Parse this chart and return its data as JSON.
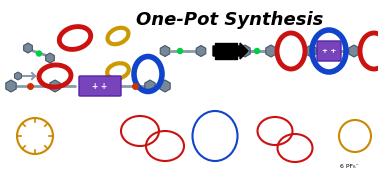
{
  "title": "One-Pot Synthesis",
  "title_style": "bold italic",
  "title_fontsize": 13,
  "bg_color": "#ffffff",
  "ring_colors": {
    "red": "#cc1111",
    "gold": "#cc9900",
    "blue": "#1144cc",
    "purple": "#6633cc"
  },
  "axle_color": "#778899",
  "stopper_color": "#667788",
  "green_dot": "#00cc44",
  "linker_color": "#cc5500"
}
